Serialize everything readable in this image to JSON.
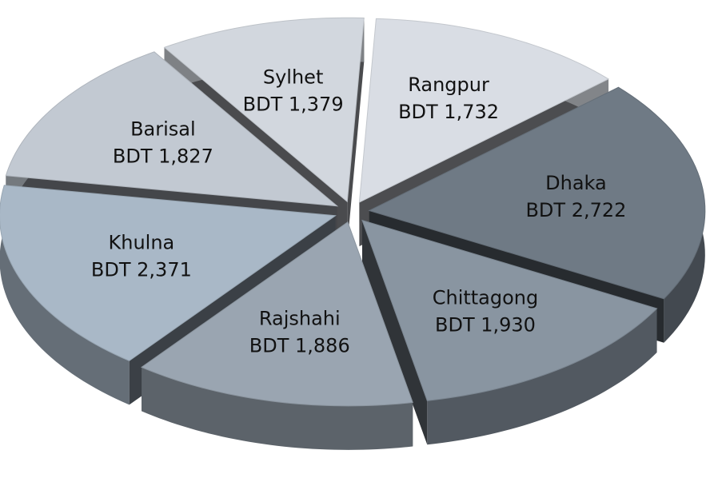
{
  "chart_data": {
    "type": "pie",
    "categories": [
      "Rangpur",
      "Dhaka",
      "Chittagong",
      "Rajshahi",
      "Khulna",
      "Barisal",
      "Sylhet"
    ],
    "values": [
      1732,
      2722,
      1930,
      1886,
      2371,
      1827,
      1379
    ],
    "value_labels": [
      "BDT 1,732",
      "BDT 2,722",
      "BDT 1,930",
      "BDT 1,886",
      "BDT 2,371",
      "BDT 1,827",
      "BDT 1,379"
    ],
    "colors": [
      "#d9dde4",
      "#6f7a85",
      "#8995a1",
      "#9aa5b1",
      "#a9b8c7",
      "#c2c9d2",
      "#d2d7de"
    ]
  }
}
